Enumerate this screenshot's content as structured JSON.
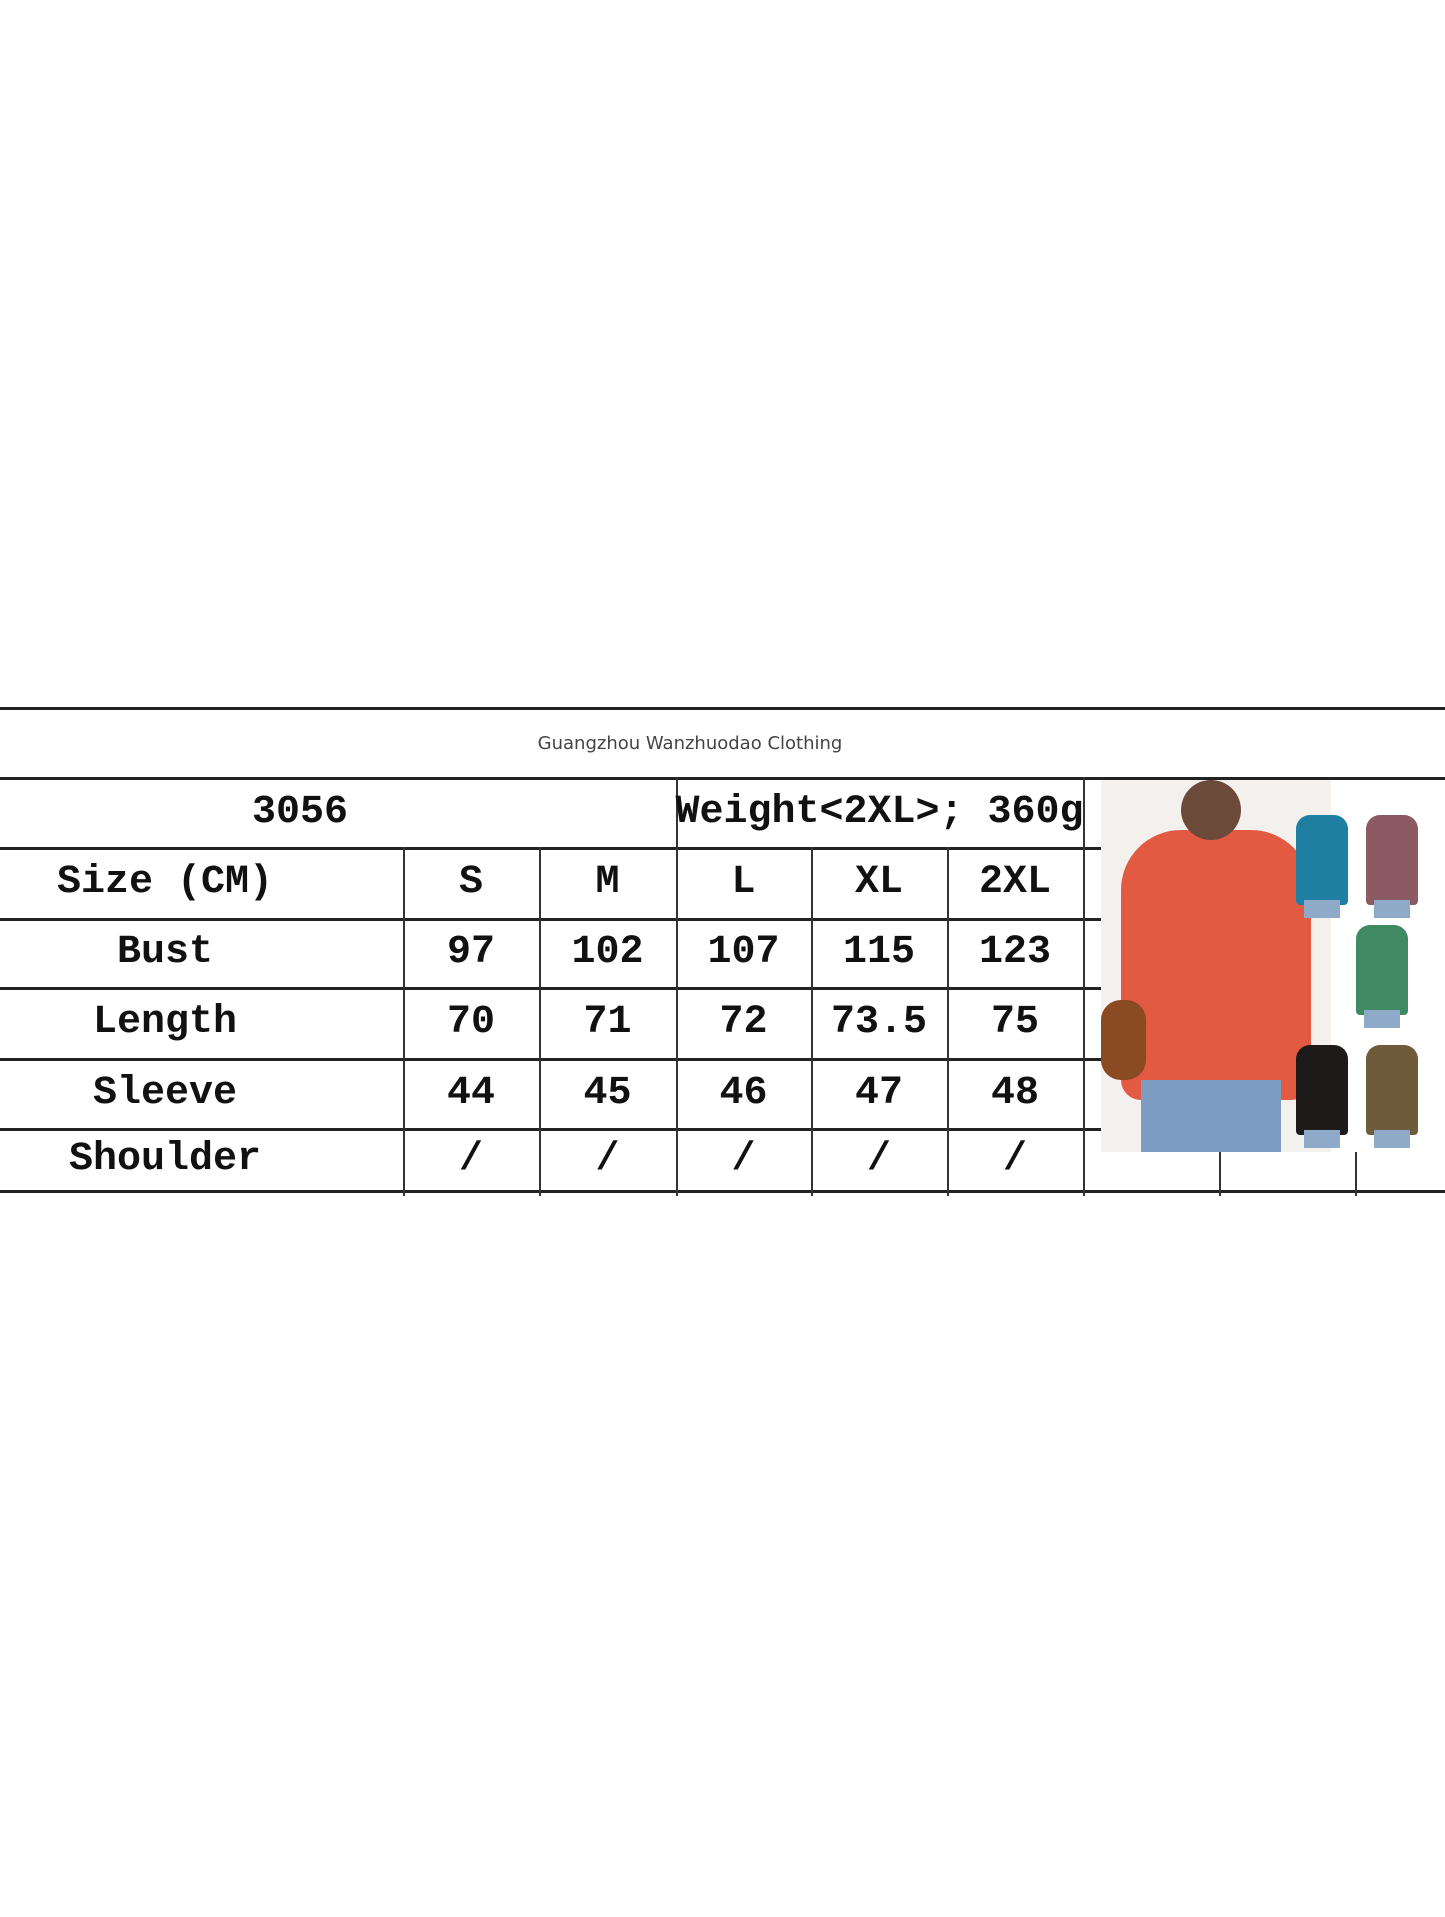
{
  "brand": "Guangzhou Wanzhuodao Clothing",
  "table": {
    "model": "3056",
    "weight": "Weight<2XL>; 360g",
    "header": [
      "Size (CM)",
      "S",
      "M",
      "L",
      "XL",
      "2XL"
    ],
    "rows": [
      [
        "Bust",
        "97",
        "102",
        "107",
        "115",
        "123"
      ],
      [
        "Length",
        "70",
        "71",
        "72",
        "73.5",
        "75"
      ],
      [
        "Sleeve",
        "44",
        "45",
        "46",
        "47",
        "48"
      ],
      [
        "Shoulder",
        "/",
        "/",
        "/",
        "/",
        "/"
      ]
    ]
  },
  "product_colors": [
    "#e35a42",
    "#1f7fa3",
    "#8b5a63",
    "#3f8a63",
    "#1e1a1a",
    "#6f5a3a"
  ]
}
